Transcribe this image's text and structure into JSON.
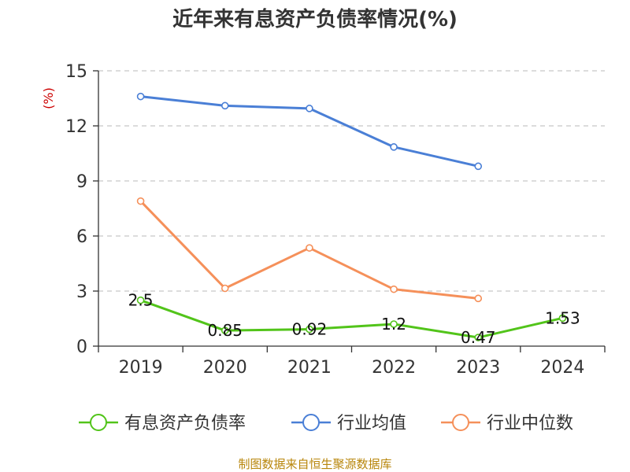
{
  "chart_data": {
    "type": "line",
    "title": "近年来有息资产负债率情况(%)",
    "ylabel": "(%)",
    "categories": [
      "2019",
      "2020",
      "2021",
      "2022",
      "2023",
      "2024"
    ],
    "ylim": [
      0,
      15
    ],
    "yticks": [
      "0",
      "3",
      "6",
      "9",
      "12",
      "15"
    ],
    "grid": true,
    "legend_position": "bottom",
    "series": [
      {
        "name": "有息资产负债率",
        "color": "#52c41a",
        "values": [
          2.5,
          0.85,
          0.92,
          1.2,
          0.47,
          1.53
        ],
        "labels": [
          "2.5",
          "0.85",
          "0.92",
          "1.2",
          "0.47",
          "1.53"
        ]
      },
      {
        "name": "行业均值",
        "color": "#4a7fd6",
        "values": [
          13.6,
          13.1,
          12.95,
          10.85,
          9.8,
          null
        ]
      },
      {
        "name": "行业中位数",
        "color": "#f5905a",
        "values": [
          7.9,
          3.15,
          5.35,
          3.1,
          2.6,
          null
        ]
      }
    ]
  },
  "source": "制图数据来自恒生聚源数据库"
}
